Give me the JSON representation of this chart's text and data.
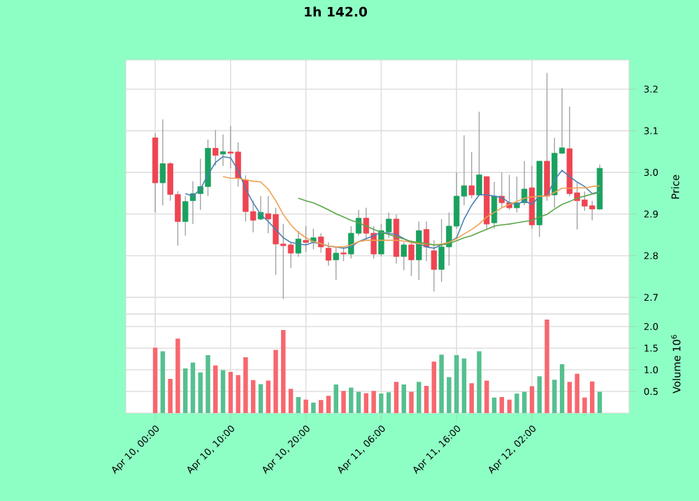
{
  "chart_data": [
    {
      "type": "candlestick",
      "title": "1h 142.0",
      "ylabel": "Price",
      "grid": true,
      "tick_labels": "y",
      "categories": [
        null,
        null,
        null,
        null,
        null,
        null,
        null,
        null,
        null,
        null,
        null,
        null,
        null,
        null,
        null,
        null,
        null,
        null,
        null,
        null,
        null,
        null,
        null,
        null,
        null,
        null,
        null,
        null,
        null,
        null,
        null,
        null,
        null,
        null,
        null,
        null,
        null,
        null,
        null,
        null,
        null,
        null,
        null,
        null,
        null,
        null,
        null,
        null,
        null,
        null,
        null,
        null,
        null,
        null,
        null,
        null,
        null,
        null,
        null,
        null
      ],
      "ylim": [
        2.66,
        3.27
      ],
      "yticks": [
        2.7,
        2.8,
        2.9,
        {
          "value": 3.0,
          "label": "3.0"
        },
        3.1,
        3.2
      ],
      "ohlc": [
        [
          3.083,
          3.094,
          2.904,
          2.975
        ],
        [
          2.975,
          3.127,
          2.921,
          3.021
        ],
        [
          3.021,
          3.025,
          2.932,
          2.947
        ],
        [
          2.947,
          2.955,
          2.824,
          2.882
        ],
        [
          2.882,
          2.943,
          2.848,
          2.93
        ],
        [
          2.932,
          2.979,
          2.876,
          2.949
        ],
        [
          2.949,
          3.033,
          2.91,
          2.966
        ],
        [
          2.966,
          3.079,
          2.943,
          3.058
        ],
        [
          3.058,
          3.102,
          3.016,
          3.041
        ],
        [
          3.044,
          3.091,
          3.016,
          3.05
        ],
        [
          3.049,
          3.111,
          3.01,
          3.046
        ],
        [
          3.049,
          3.072,
          2.966,
          2.986
        ],
        [
          2.982,
          2.993,
          2.882,
          2.906
        ],
        [
          2.906,
          2.932,
          2.856,
          2.885
        ],
        [
          2.888,
          2.943,
          2.885,
          2.904
        ],
        [
          2.901,
          2.943,
          2.854,
          2.888
        ],
        [
          2.899,
          2.915,
          2.754,
          2.828
        ],
        [
          2.828,
          2.876,
          2.696,
          2.824
        ],
        [
          2.826,
          2.832,
          2.77,
          2.806
        ],
        [
          2.806,
          2.86,
          2.798,
          2.84
        ],
        [
          2.837,
          2.871,
          2.809,
          2.832
        ],
        [
          2.834,
          2.865,
          2.815,
          2.843
        ],
        [
          2.845,
          2.854,
          2.807,
          2.821
        ],
        [
          2.818,
          2.832,
          2.776,
          2.789
        ],
        [
          2.79,
          2.821,
          2.742,
          2.806
        ],
        [
          2.807,
          2.821,
          2.787,
          2.804
        ],
        [
          2.804,
          2.871,
          2.793,
          2.854
        ],
        [
          2.854,
          2.91,
          2.848,
          2.89
        ],
        [
          2.89,
          2.915,
          2.837,
          2.854
        ],
        [
          2.854,
          2.871,
          2.793,
          2.804
        ],
        [
          2.804,
          2.876,
          2.798,
          2.86
        ],
        [
          2.857,
          2.904,
          2.843,
          2.888
        ],
        [
          2.888,
          2.899,
          2.781,
          2.798
        ],
        [
          2.798,
          2.832,
          2.765,
          2.826
        ],
        [
          2.826,
          2.837,
          2.751,
          2.79
        ],
        [
          2.79,
          2.882,
          2.742,
          2.86
        ],
        [
          2.863,
          2.882,
          2.787,
          2.821
        ],
        [
          2.812,
          2.837,
          2.714,
          2.767
        ],
        [
          2.767,
          2.888,
          2.737,
          2.821
        ],
        [
          2.821,
          2.904,
          2.776,
          2.871
        ],
        [
          2.871,
          3.0,
          2.865,
          2.943
        ],
        [
          2.943,
          3.089,
          2.921,
          2.968
        ],
        [
          2.968,
          3.049,
          2.938,
          2.946
        ],
        [
          2.946,
          3.146,
          2.943,
          2.994
        ],
        [
          2.99,
          2.99,
          2.865,
          2.876
        ],
        [
          2.879,
          2.977,
          2.865,
          2.943
        ],
        [
          2.943,
          3.0,
          2.915,
          2.927
        ],
        [
          2.927,
          2.994,
          2.91,
          2.915
        ],
        [
          2.915,
          2.99,
          2.904,
          2.927
        ],
        [
          2.927,
          3.027,
          2.921,
          2.96
        ],
        [
          2.963,
          3.016,
          2.865,
          2.874
        ],
        [
          2.874,
          3.027,
          2.845,
          3.027
        ],
        [
          3.027,
          3.239,
          2.932,
          2.943
        ],
        [
          2.946,
          3.083,
          2.915,
          3.046
        ],
        [
          3.046,
          3.202,
          3.044,
          3.059
        ],
        [
          3.057,
          3.158,
          2.943,
          2.949
        ],
        [
          2.951,
          2.977,
          2.863,
          2.932
        ],
        [
          2.934,
          2.954,
          2.908,
          2.919
        ],
        [
          2.92,
          2.932,
          2.885,
          2.912
        ],
        [
          2.912,
          3.019,
          2.91,
          3.01
        ]
      ],
      "colors": [
        "#ef4451",
        "#1aa15f",
        "#ef4451",
        "#ef4451",
        "#1aa15f",
        "#1aa15f",
        "#1aa15f",
        "#1aa15f",
        "#ef4451",
        "#1aa15f",
        "#ef4451",
        "#ef4451",
        "#ef4451",
        "#ef4451",
        "#1aa15f",
        "#ef4451",
        "#ef4451",
        "#ef4451",
        "#ef4451",
        "#1aa15f",
        "#ef4451",
        "#1aa15f",
        "#ef4451",
        "#ef4451",
        "#1aa15f",
        "#ef4451",
        "#1aa15f",
        "#1aa15f",
        "#ef4451",
        "#ef4451",
        "#1aa15f",
        "#1aa15f",
        "#ef4451",
        "#1aa15f",
        "#ef4451",
        "#1aa15f",
        "#ef4451",
        "#ef4451",
        "#1aa15f",
        "#1aa15f",
        "#1aa15f",
        "#1aa15f",
        "#ef4451",
        "#1aa15f",
        "#ef4451",
        "#1aa15f",
        "#ef4451",
        "#ef4451",
        "#1aa15f",
        "#1aa15f",
        "#ef4451",
        "#1aa15f",
        "#ef4451",
        "#1aa15f",
        "#1aa15f",
        "#ef4451",
        "#ef4451",
        "#ef4451",
        "#ef4451",
        "#1aa15f"
      ],
      "series": [
        {
          "type": "line",
          "color": "#4a7fb5",
          "values": [
            null,
            null,
            null,
            null,
            2.949,
            2.943,
            2.96,
            2.994,
            3.024,
            3.038,
            3.035,
            3.005,
            2.96,
            2.927,
            2.899,
            2.882,
            2.863,
            2.843,
            2.832,
            2.828,
            2.826,
            2.832,
            2.829,
            2.823,
            2.821,
            2.818,
            2.821,
            2.834,
            2.841,
            2.848,
            2.856,
            2.854,
            2.851,
            2.841,
            2.832,
            2.829,
            2.821,
            2.818,
            2.826,
            2.832,
            2.843,
            2.888,
            2.921,
            2.946,
            2.946,
            2.943,
            2.94,
            2.927,
            2.923,
            2.932,
            2.923,
            2.943,
            2.943,
            2.982,
            3.005,
            2.99,
            2.977,
            2.966,
            2.949,
            2.954
          ]
        },
        {
          "type": "line",
          "color": "#f0a050",
          "values": [
            null,
            null,
            null,
            null,
            null,
            null,
            null,
            null,
            null,
            2.99,
            2.986,
            2.986,
            2.982,
            2.979,
            2.977,
            2.96,
            2.932,
            2.899,
            2.874,
            2.856,
            2.843,
            2.834,
            2.829,
            2.823,
            2.821,
            2.821,
            2.826,
            2.834,
            2.837,
            2.837,
            2.837,
            2.837,
            2.837,
            2.835,
            2.832,
            2.829,
            2.828,
            2.826,
            2.828,
            2.832,
            2.841,
            2.852,
            2.863,
            2.876,
            2.893,
            2.904,
            2.915,
            2.923,
            2.93,
            2.938,
            2.941,
            2.943,
            2.943,
            2.952,
            2.962,
            2.962,
            2.963,
            2.963,
            2.966,
            2.968
          ]
        },
        {
          "type": "line",
          "color": "#5aa64a",
          "values": [
            null,
            null,
            null,
            null,
            null,
            null,
            null,
            null,
            null,
            null,
            null,
            null,
            null,
            null,
            null,
            null,
            null,
            null,
            null,
            2.938,
            2.932,
            2.927,
            2.919,
            2.91,
            2.901,
            2.893,
            2.885,
            2.879,
            2.871,
            2.863,
            2.856,
            2.851,
            2.845,
            2.84,
            2.834,
            2.832,
            2.829,
            2.826,
            2.826,
            2.829,
            2.836,
            2.843,
            2.848,
            2.856,
            2.863,
            2.871,
            2.874,
            2.876,
            2.879,
            2.882,
            2.885,
            2.893,
            2.899,
            2.912,
            2.923,
            2.93,
            2.938,
            2.943,
            2.948,
            2.952
          ]
        }
      ]
    },
    {
      "type": "bar",
      "ylabel": "Volume 10$^{6}$",
      "grid": true,
      "categories": [
        "Apr 10, 00:00",
        null,
        null,
        null,
        null,
        null,
        null,
        null,
        null,
        null,
        "Apr 10, 10:00",
        null,
        null,
        null,
        null,
        null,
        null,
        null,
        null,
        null,
        "Apr 10, 20:00",
        null,
        null,
        null,
        null,
        null,
        null,
        null,
        null,
        null,
        "Apr 11, 06:00",
        null,
        null,
        null,
        null,
        null,
        null,
        null,
        null,
        null,
        "Apr 11, 16:00",
        null,
        null,
        null,
        null,
        null,
        null,
        null,
        null,
        null,
        "Apr 12, 02:00",
        null,
        null,
        null,
        null,
        null,
        null,
        null,
        null,
        null
      ],
      "ylim": [
        0,
        2.29
      ],
      "yticks": [
        0.5,
        {
          "value": 1.0,
          "label": "1.0"
        },
        1.5,
        {
          "value": 2.0,
          "label": "2.0"
        }
      ],
      "colors": [
        "#f7676e",
        "#55c08f",
        "#f7676e",
        "#f7676e",
        "#55c08f",
        "#55c08f",
        "#55c08f",
        "#55c08f",
        "#f7676e",
        "#55c08f",
        "#f7676e",
        "#f7676e",
        "#f7676e",
        "#f7676e",
        "#55c08f",
        "#f7676e",
        "#f7676e",
        "#f7676e",
        "#f7676e",
        "#55c08f",
        "#f7676e",
        "#55c08f",
        "#f7676e",
        "#f7676e",
        "#55c08f",
        "#f7676e",
        "#55c08f",
        "#55c08f",
        "#f7676e",
        "#f7676e",
        "#55c08f",
        "#55c08f",
        "#f7676e",
        "#55c08f",
        "#f7676e",
        "#55c08f",
        "#f7676e",
        "#f7676e",
        "#55c08f",
        "#55c08f",
        "#55c08f",
        "#55c08f",
        "#f7676e",
        "#55c08f",
        "#f7676e",
        "#55c08f",
        "#f7676e",
        "#f7676e",
        "#55c08f",
        "#55c08f",
        "#f7676e",
        "#55c08f",
        "#f7676e",
        "#55c08f",
        "#55c08f",
        "#f7676e",
        "#f7676e",
        "#f7676e",
        "#f7676e",
        "#55c08f"
      ],
      "values": [
        1.51,
        1.43,
        0.79,
        1.72,
        1.03,
        1.17,
        0.94,
        1.34,
        1.1,
        0.99,
        0.95,
        0.88,
        1.29,
        0.76,
        0.67,
        0.75,
        1.46,
        1.92,
        0.56,
        0.37,
        0.31,
        0.24,
        0.3,
        0.4,
        0.66,
        0.51,
        0.59,
        0.49,
        0.46,
        0.51,
        0.45,
        0.48,
        0.72,
        0.66,
        0.49,
        0.72,
        0.63,
        1.19,
        1.35,
        0.83,
        1.34,
        1.26,
        0.69,
        1.43,
        0.75,
        0.36,
        0.37,
        0.31,
        0.45,
        0.49,
        0.62,
        0.85,
        2.16,
        0.77,
        1.13,
        0.72,
        0.91,
        0.36,
        0.73,
        0.49
      ]
    }
  ]
}
